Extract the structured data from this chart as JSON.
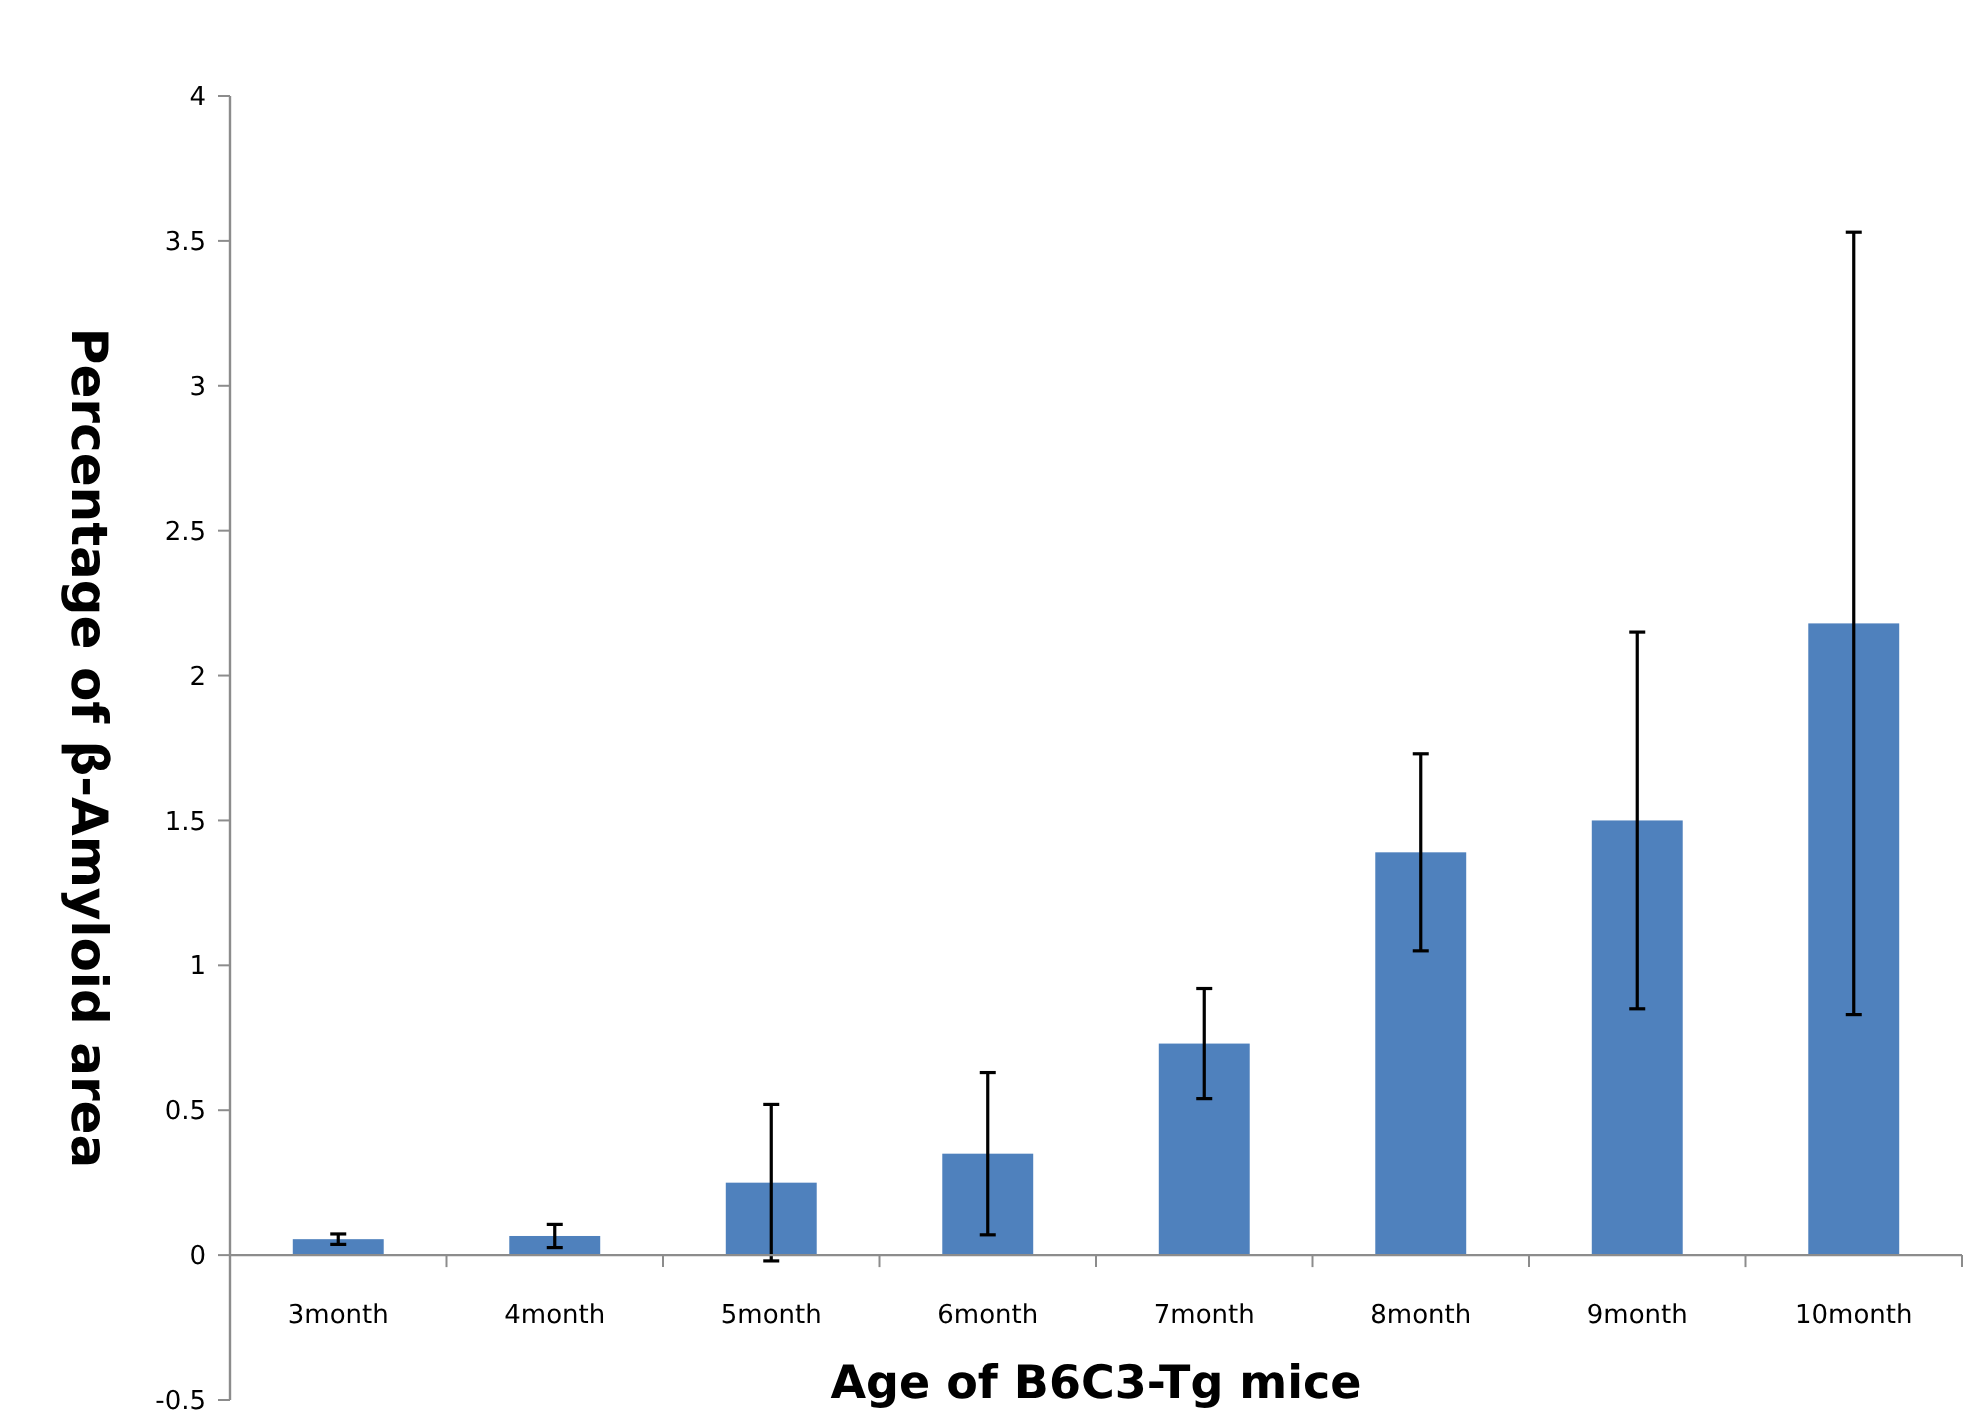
{
  "chart_data": {
    "type": "bar",
    "xlabel": "Age of B6C3-Tg mice",
    "ylabel": "Percentage of β-Amyloid area",
    "categories": [
      "3month",
      "4month",
      "5month",
      "6month",
      "7month",
      "8month",
      "9month",
      "10month"
    ],
    "values": [
      0.055,
      0.066,
      0.25,
      0.35,
      0.73,
      1.39,
      1.5,
      2.18
    ],
    "errors": [
      0.018,
      0.04,
      0.27,
      0.28,
      0.19,
      0.34,
      0.65,
      1.35
    ],
    "color": "#4f81bd",
    "ylim": [
      -0.5,
      4
    ],
    "yticks": [
      -0.5,
      0,
      0.5,
      1,
      1.5,
      2,
      2.5,
      3,
      3.5,
      4
    ],
    "grid": false
  }
}
